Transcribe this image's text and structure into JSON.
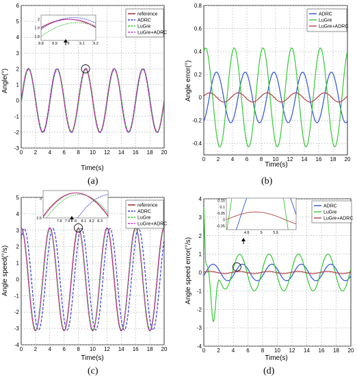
{
  "colors": {
    "reference": "#8b1a1a",
    "adrc": "#3a3ad6",
    "lugre": "#33cc33",
    "lugre_adrc": "#cc33cc",
    "err_adrc": "#2b4fd8",
    "err_lugre": "#32c832",
    "err_lugre_adrc": "#b04040"
  },
  "chart_data": [
    {
      "panel": "(a)",
      "type": "line",
      "xlabel": "Time(s)",
      "ylabel": "Angle(°)",
      "xlim": [
        0,
        20
      ],
      "ylim": [
        -3,
        6
      ],
      "xticks": [
        "0",
        "2",
        "4",
        "6",
        "8",
        "10",
        "12",
        "14",
        "16",
        "18",
        "20"
      ],
      "yticks": [
        "-3",
        "-2",
        "-1",
        "0",
        "1",
        "2",
        "3",
        "4",
        "5",
        "6"
      ],
      "grid": true,
      "legend_position": "top-right",
      "series": [
        {
          "name": "reference",
          "model": "sine",
          "amplitude": 2,
          "omega": 1.5708,
          "phase": 0,
          "dashed": false
        },
        {
          "name": "ADRC",
          "model": "sine",
          "amplitude": 2.02,
          "omega": 1.5708,
          "phase": -0.06,
          "dashed": true
        },
        {
          "name": "LuGre",
          "model": "sine",
          "amplitude": 1.96,
          "omega": 1.5708,
          "phase": -0.1,
          "dashed": true
        },
        {
          "name": "LuGre+ADRC",
          "model": "sine",
          "amplitude": 2.0,
          "omega": 1.5708,
          "phase": -0.02,
          "dashed": true
        }
      ],
      "inset": {
        "xlim": [
          8.8,
          9.2
        ],
        "ylim": [
          1.75,
          2.05
        ],
        "xticks": [
          "8.8",
          "8.9",
          "9",
          "9.1",
          "9.2"
        ],
        "yticks": [
          "1.8",
          "1.9",
          "2"
        ]
      }
    },
    {
      "panel": "(b)",
      "type": "line",
      "xlabel": "Time(s)",
      "ylabel": "Angle error(°)",
      "xlim": [
        0,
        20
      ],
      "ylim": [
        -0.5,
        0.8
      ],
      "xticks": [
        "0",
        "2",
        "4",
        "6",
        "8",
        "10",
        "12",
        "14",
        "16",
        "18",
        "20"
      ],
      "yticks": [
        "-0.4",
        "-0.2",
        "0",
        "0.2",
        "0.4",
        "0.6",
        "0.8"
      ],
      "grid": true,
      "legend_position": "top-right",
      "series": [
        {
          "name": "ADRC",
          "model": "sine",
          "amplitude": 0.22,
          "omega": 1.5708,
          "phase": -1.2,
          "dashed": false
        },
        {
          "name": "LuGre",
          "model": "sine",
          "amplitude": 0.43,
          "omega": 1.5708,
          "phase": 1.2,
          "dashed": false
        },
        {
          "name": "LuGre+ADRC",
          "model": "sine",
          "amplitude": 0.04,
          "omega": 1.5708,
          "phase": 0.3,
          "dashed": false
        }
      ]
    },
    {
      "panel": "(c)",
      "type": "line",
      "xlabel": "Time(s)",
      "ylabel": "Angle speed(°/s)",
      "xlim": [
        0,
        20
      ],
      "ylim": [
        -4,
        5
      ],
      "xticks": [
        "0",
        "2",
        "4",
        "6",
        "8",
        "10",
        "12",
        "14",
        "16",
        "18",
        "20"
      ],
      "yticks": [
        "-4",
        "-3",
        "-2",
        "-1",
        "0",
        "1",
        "2",
        "3",
        "4",
        "5"
      ],
      "grid": true,
      "legend_position": "top-right",
      "series": [
        {
          "name": "reference",
          "model": "sine",
          "amplitude": 3.14,
          "omega": 1.5708,
          "phase": 1.5708,
          "dashed": false
        },
        {
          "name": "ADRC",
          "model": "sine",
          "amplitude": 3.1,
          "omega": 1.5708,
          "phase": 0.9,
          "dashed": true
        },
        {
          "name": "LuGre",
          "model": "sine",
          "amplitude": 3.1,
          "omega": 1.5708,
          "phase": 1.5,
          "dashed": true
        },
        {
          "name": "LuGre+ADRC",
          "model": "sine",
          "amplitude": 3.14,
          "omega": 1.5708,
          "phase": 1.55,
          "dashed": true
        }
      ],
      "inset": {
        "xlim": [
          7.6,
          8.4
        ],
        "ylim": [
          2.5,
          3.2
        ],
        "xticks": [
          "7.8",
          "7.9",
          "8",
          "8.1",
          "8.2",
          "8.3"
        ],
        "yticks": [
          "2.5",
          "3"
        ]
      }
    },
    {
      "panel": "(d)",
      "type": "line",
      "xlabel": "Time(s)",
      "ylabel": "Angle speed error(°/s)",
      "xlim": [
        0,
        20
      ],
      "ylim": [
        -4,
        4
      ],
      "xticks": [
        "0",
        "2",
        "4",
        "6",
        "8",
        "10",
        "12",
        "14",
        "16",
        "18",
        "20"
      ],
      "yticks": [
        "-4",
        "-3",
        "-2",
        "-1",
        "0",
        "1",
        "2",
        "3",
        "4"
      ],
      "grid": true,
      "legend_position": "top-right",
      "series": [
        {
          "name": "ADRC",
          "model": "sine",
          "amplitude": 0.45,
          "omega": 1.5708,
          "phase": -0.4,
          "dashed": false
        },
        {
          "name": "LuGre",
          "model": "lugre_transient",
          "amplitude": 1.0,
          "omega": 1.5708,
          "phase": 0.2,
          "dashed": false
        },
        {
          "name": "LuGre+ADRC",
          "model": "sine",
          "amplitude": 0.06,
          "omega": 1.5708,
          "phase": 0.3,
          "dashed": false
        }
      ],
      "inset": {
        "xlim": [
          3.8,
          6.2
        ],
        "ylim": [
          -0.08,
          0.17
        ],
        "xticks": [
          "4.5",
          "5",
          "5.5"
        ],
        "yticks": [
          "-0.05",
          "0",
          "0.05",
          "0.1",
          "0.15"
        ]
      }
    }
  ]
}
